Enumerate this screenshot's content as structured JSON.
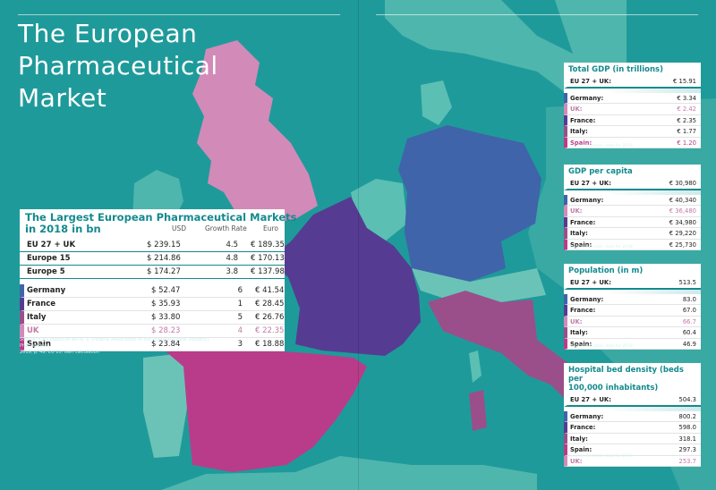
{
  "title_lines": [
    "The European",
    "Pharmaceutical",
    "Market"
  ],
  "colors": {
    "sea": "#1f9a9a",
    "teal_land": "#5bbfb4",
    "uk": "#d28ab8",
    "germany": "#3f64aa",
    "france": "#553c92",
    "italy": "#9a4f8a",
    "spain": "#b93c8a",
    "accent": "#138a8e"
  },
  "main_table": {
    "title_lines": [
      "The Largest European Pharmaceutical Markets",
      "in 2018 in bn"
    ],
    "columns": [
      "USD",
      "Growth Rate",
      "Euro"
    ],
    "aggregate_rows": [
      {
        "name": "EU 27 + UK",
        "usd": "$ 239.15",
        "growth": "4.5",
        "euro": "€ 189.35"
      },
      {
        "name": "Europe 15",
        "usd": "$ 214.86",
        "growth": "4.8",
        "euro": "€ 170.13"
      },
      {
        "name": "Europe 5",
        "usd": "$ 174.27",
        "growth": "3.8",
        "euro": "€ 137.98"
      }
    ],
    "country_rows": [
      {
        "name": "Germany",
        "usd": "$ 52.47",
        "growth": "6",
        "euro": "€ 41.54",
        "color": "#3f64aa",
        "text_color": "#222222"
      },
      {
        "name": "France",
        "usd": "$ 35.93",
        "growth": "1",
        "euro": "€ 28.45",
        "color": "#553c92",
        "text_color": "#222222"
      },
      {
        "name": "Italy",
        "usd": "$ 33.80",
        "growth": "5",
        "euro": "€ 26.76",
        "color": "#9a4f8a",
        "text_color": "#222222"
      },
      {
        "name": "UK",
        "usd": "$ 28.23",
        "growth": "4",
        "euro": "€ 22.35",
        "color": "#d28ab8",
        "text_color": "#c27aa8"
      },
      {
        "name": "Spain",
        "usd": "$ 23.84",
        "growth": "3",
        "euro": "€ 18.88",
        "color": "#b93c8a",
        "text_color": "#222222"
      }
    ],
    "source_lines": [
      "Source: IQES based on BPI e. V. (Federal Association of the Pharmaceutical Industry), Pharmadaten",
      "2019, p. 49. EU 15: own calculation"
    ]
  },
  "gdp_box": {
    "title": "Total GDP (in trillions)",
    "sum": {
      "label": "EU 27 + UK:",
      "value": "€ 15.91"
    },
    "rows": [
      {
        "label": "Germany:",
        "value": "€ 3.34",
        "color": "#3f64aa",
        "text_color": "#222222"
      },
      {
        "label": "UK:",
        "value": "€ 2.42",
        "color": "#d28ab8",
        "text_color": "#c27aa8"
      },
      {
        "label": "France:",
        "value": "€ 2.35",
        "color": "#553c92",
        "text_color": "#222222"
      },
      {
        "label": "Italy:",
        "value": "€ 1.77",
        "color": "#9a4f8a",
        "text_color": "#222222"
      },
      {
        "label": "Spain:",
        "value": "€ 1.20",
        "color": "#b93c8a",
        "text_color": "#b93c8a"
      }
    ],
    "source": "Source: Eurostat, data for 2018"
  },
  "gdp_capita_box": {
    "title": "GDP per capita",
    "sum": {
      "label": "EU 27 + UK:",
      "value": "€ 30,980"
    },
    "rows": [
      {
        "label": "Germany:",
        "value": "€ 40,340",
        "color": "#3f64aa",
        "text_color": "#222222"
      },
      {
        "label": "UK:",
        "value": "€ 36,480",
        "color": "#d28ab8",
        "text_color": "#c27aa8"
      },
      {
        "label": "France:",
        "value": "€ 34,980",
        "color": "#553c92",
        "text_color": "#222222"
      },
      {
        "label": "Italy:",
        "value": "€ 29,220",
        "color": "#9a4f8a",
        "text_color": "#222222"
      },
      {
        "label": "Spain:",
        "value": "€ 25,730",
        "color": "#b93c8a",
        "text_color": "#222222"
      }
    ],
    "source": "Source: Eurostat, data for 2018"
  },
  "population_box": {
    "title": "Population (in m)",
    "sum": {
      "label": "EU 27 + UK:",
      "value": "513.5"
    },
    "rows": [
      {
        "label": "Germany:",
        "value": "83.0",
        "color": "#3f64aa",
        "text_color": "#222222"
      },
      {
        "label": "France:",
        "value": "67.0",
        "color": "#553c92",
        "text_color": "#222222"
      },
      {
        "label": "UK:",
        "value": "66.7",
        "color": "#d28ab8",
        "text_color": "#c27aa8"
      },
      {
        "label": "Italy:",
        "value": "60.4",
        "color": "#9a4f8a",
        "text_color": "#222222"
      },
      {
        "label": "Spain:",
        "value": "46.9",
        "color": "#b93c8a",
        "text_color": "#222222"
      }
    ],
    "source": "Source: Eurostat, data for 2018"
  },
  "hospital_box": {
    "title_lines": [
      "Hospital bed density (beds per",
      "100,000 inhabitants)"
    ],
    "sum": {
      "label": "EU 27 + UK:",
      "value": "504.3"
    },
    "rows": [
      {
        "label": "Germany:",
        "value": "800.2",
        "color": "#3f64aa",
        "text_color": "#222222"
      },
      {
        "label": "France:",
        "value": "598.0",
        "color": "#553c92",
        "text_color": "#222222"
      },
      {
        "label": "Italy:",
        "value": "318.1",
        "color": "#9a4f8a",
        "text_color": "#222222"
      },
      {
        "label": "Spain:",
        "value": "297.3",
        "color": "#b93c8a",
        "text_color": "#222222"
      },
      {
        "label": "UK:",
        "value": "253.7",
        "color": "#d28ab8",
        "text_color": "#c27aa8"
      }
    ],
    "source": "Source: Eurostat, data for 2017"
  }
}
